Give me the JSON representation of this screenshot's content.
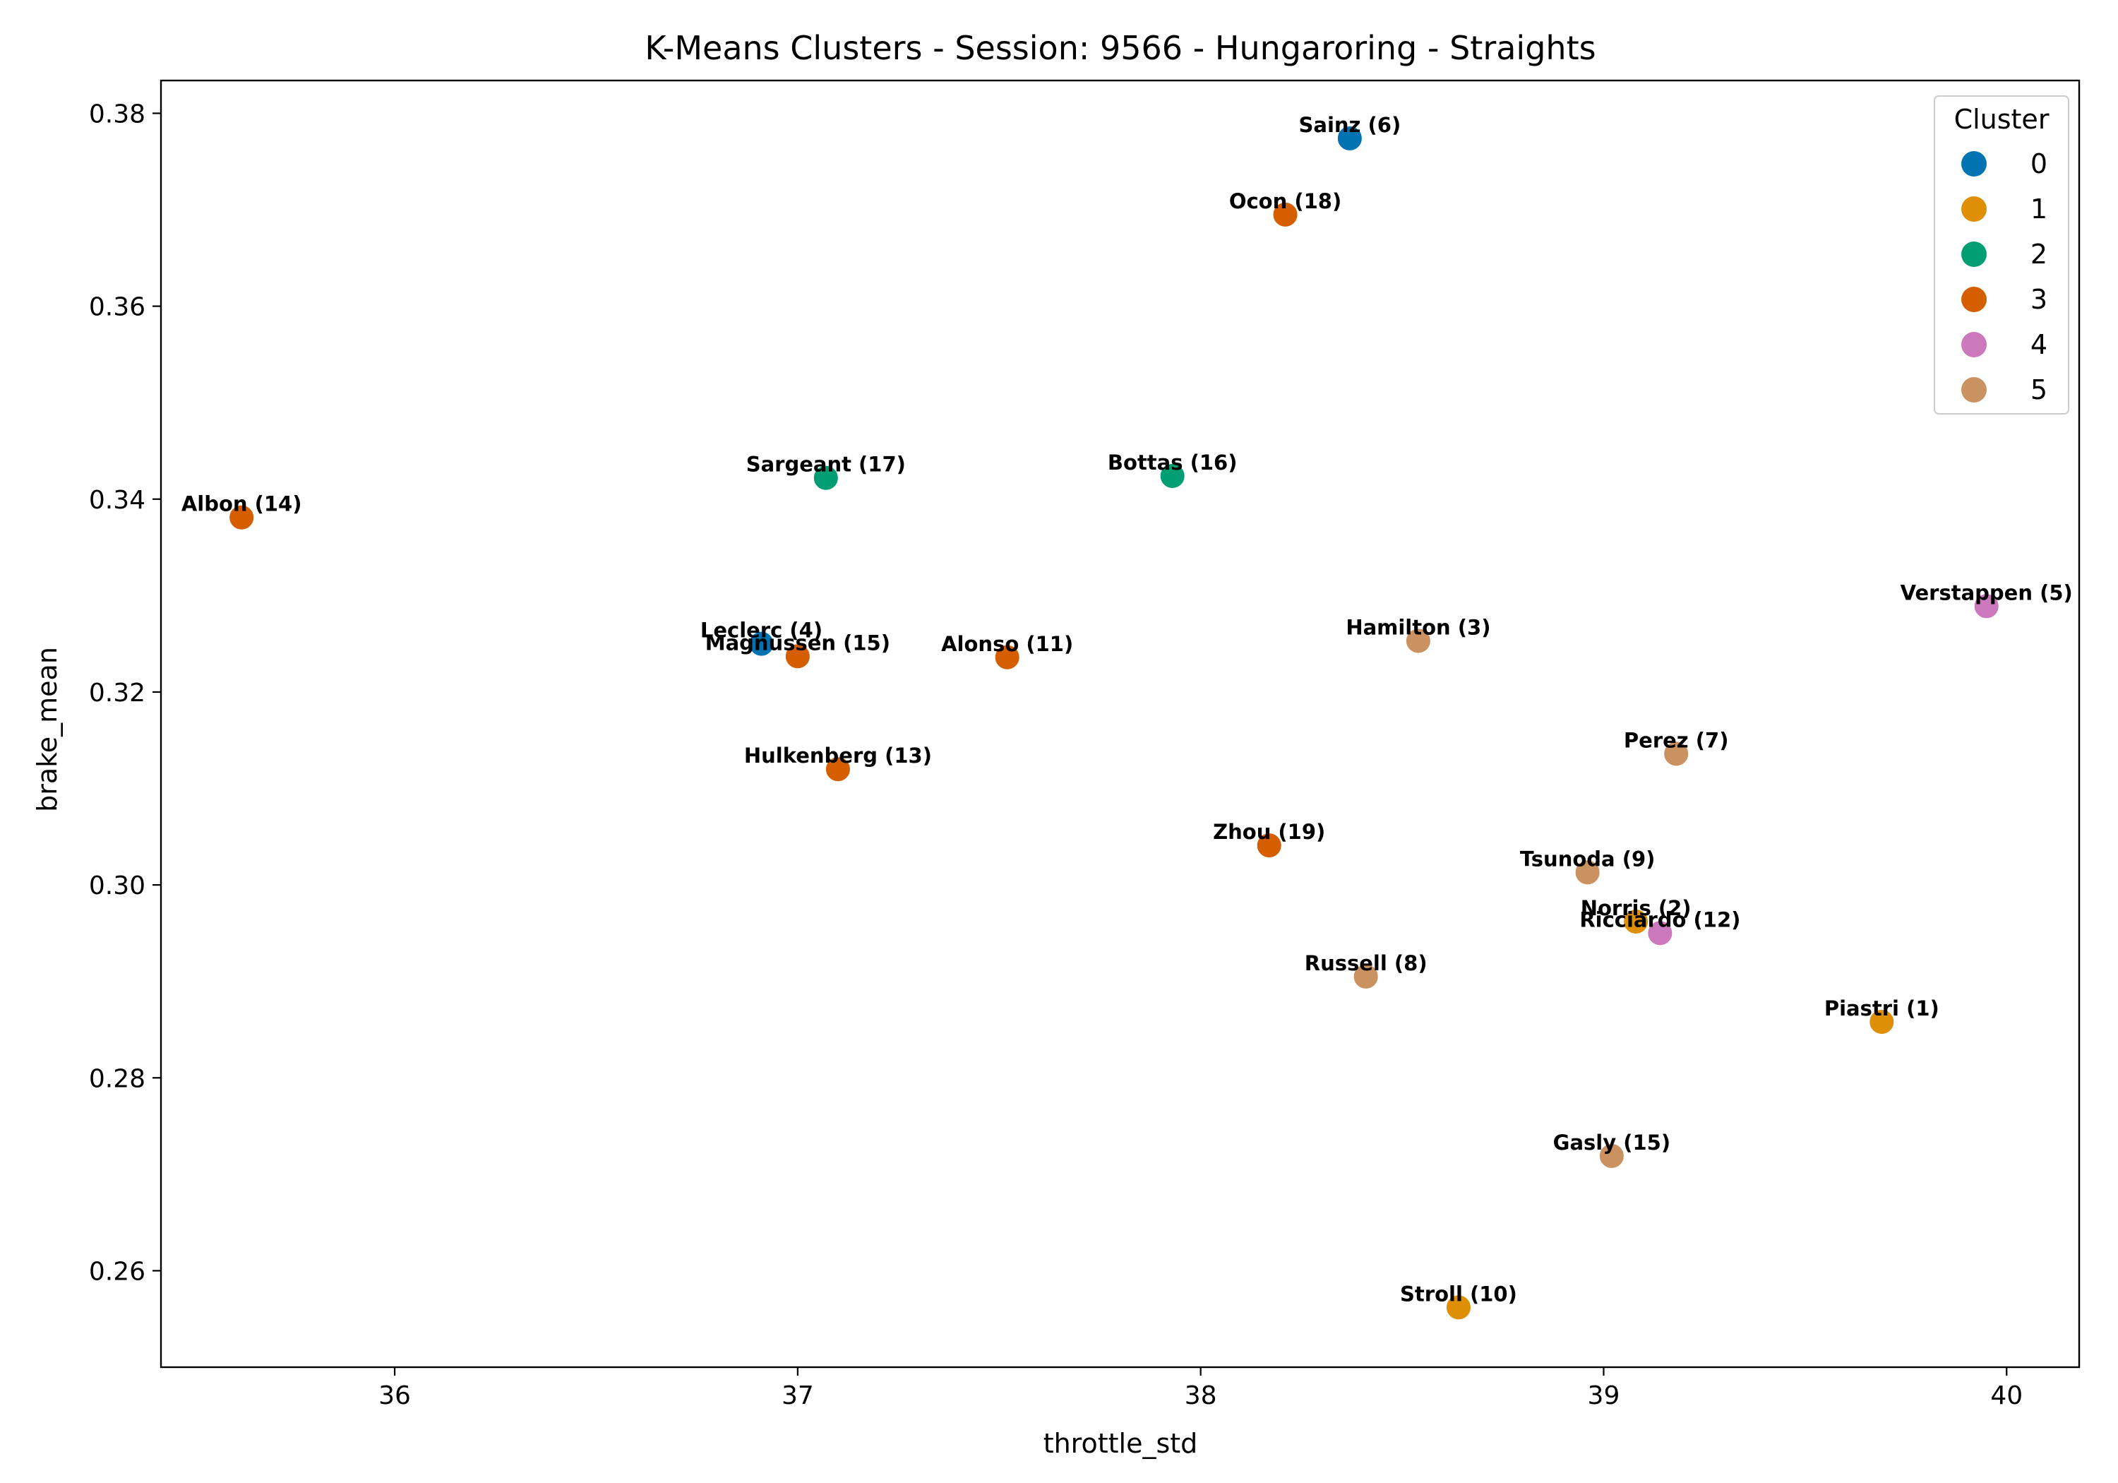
{
  "chart_data": {
    "type": "scatter",
    "title": "K-Means Clusters - Session: 9566 - Hungaroring - Straights",
    "xlabel": "throttle_std",
    "ylabel": "brake_mean",
    "xlim": [
      35.42,
      40.18
    ],
    "ylim": [
      0.25,
      0.3834
    ],
    "xticks": [
      "36",
      "37",
      "38",
      "39",
      "40"
    ],
    "xtick_values": [
      36,
      37,
      38,
      39,
      40
    ],
    "yticks": [
      "0.26",
      "0.28",
      "0.30",
      "0.32",
      "0.34",
      "0.36",
      "0.38"
    ],
    "ytick_values": [
      0.26,
      0.28,
      0.3,
      0.32,
      0.34,
      0.36,
      0.38
    ],
    "grid": false,
    "legend": {
      "title": "Cluster",
      "placement": "top-right",
      "entries": [
        {
          "label": "0",
          "color": "#0173b2"
        },
        {
          "label": "1",
          "color": "#de8f05"
        },
        {
          "label": "2",
          "color": "#029e73"
        },
        {
          "label": "3",
          "color": "#d55e00"
        },
        {
          "label": "4",
          "color": "#cc78bc"
        },
        {
          "label": "5",
          "color": "#ca9161"
        }
      ]
    },
    "points": [
      {
        "label": "Sainz (6)",
        "x": 38.37,
        "y": 0.3774,
        "cluster": 0
      },
      {
        "label": "Ocon (18)",
        "x": 38.21,
        "y": 0.3695,
        "cluster": 3
      },
      {
        "label": "Sargeant (17)",
        "x": 37.07,
        "y": 0.3422,
        "cluster": 2
      },
      {
        "label": "Bottas (16)",
        "x": 37.93,
        "y": 0.3424,
        "cluster": 2
      },
      {
        "label": "Albon (14)",
        "x": 35.62,
        "y": 0.3381,
        "cluster": 3
      },
      {
        "label": "Verstappen (5)",
        "x": 39.95,
        "y": 0.3289,
        "cluster": 4
      },
      {
        "label": "Leclerc (4)",
        "x": 36.91,
        "y": 0.325,
        "cluster": 0
      },
      {
        "label": "Magnussen (15)",
        "x": 37.0,
        "y": 0.3237,
        "cluster": 3
      },
      {
        "label": "Alonso (11)",
        "x": 37.52,
        "y": 0.3236,
        "cluster": 3
      },
      {
        "label": "Hamilton (3)",
        "x": 38.54,
        "y": 0.3253,
        "cluster": 5
      },
      {
        "label": "Perez (7)",
        "x": 39.18,
        "y": 0.3136,
        "cluster": 5
      },
      {
        "label": "Hulkenberg (13)",
        "x": 37.1,
        "y": 0.312,
        "cluster": 3
      },
      {
        "label": "Zhou (19)",
        "x": 38.17,
        "y": 0.3041,
        "cluster": 3
      },
      {
        "label": "Tsunoda (9)",
        "x": 38.96,
        "y": 0.3013,
        "cluster": 5
      },
      {
        "label": "Norris (2)",
        "x": 39.08,
        "y": 0.2962,
        "cluster": 1
      },
      {
        "label": "Ricciardo (12)",
        "x": 39.14,
        "y": 0.295,
        "cluster": 4
      },
      {
        "label": "Russell (8)",
        "x": 38.41,
        "y": 0.2905,
        "cluster": 5
      },
      {
        "label": "Piastri (1)",
        "x": 39.69,
        "y": 0.2858,
        "cluster": 1
      },
      {
        "label": "Gasly (15)",
        "x": 39.02,
        "y": 0.2719,
        "cluster": 5
      },
      {
        "label": "Stroll (10)",
        "x": 38.64,
        "y": 0.2562,
        "cluster": 1
      }
    ]
  }
}
